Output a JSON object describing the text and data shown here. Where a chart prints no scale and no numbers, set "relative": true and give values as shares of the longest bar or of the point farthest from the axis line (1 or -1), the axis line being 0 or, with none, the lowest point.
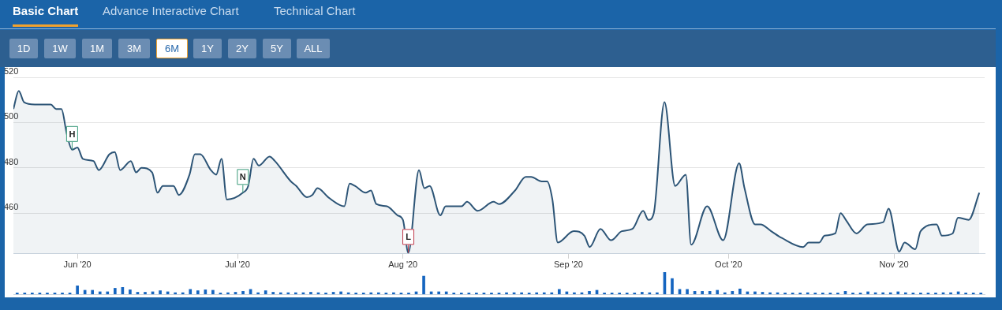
{
  "chart_data": [
    {
      "type": "area",
      "annotations": [
        "Basic Chart",
        "Advance Interactive Chart",
        "Technical Chart",
        "1D",
        "1W",
        "1M",
        "3M",
        "6M",
        "1Y",
        "2Y",
        "5Y",
        "ALL",
        {
          "text": "H",
          "x": "2020-05-31",
          "y": 488
        },
        {
          "text": "N",
          "x": "2020-07-02",
          "y": 469
        },
        {
          "text": "L",
          "x": "2020-08-02",
          "y": 442.5
        }
      ],
      "x": [
        "2020-05-20",
        "2020-05-21",
        "2020-05-22",
        "2020-05-24",
        "2020-05-25",
        "2020-05-27",
        "2020-05-28",
        "2020-05-29",
        "2020-05-30",
        "2020-05-31",
        "2020-06-01",
        "2020-06-02",
        "2020-06-04",
        "2020-06-05",
        "2020-06-07",
        "2020-06-08",
        "2020-06-09",
        "2020-06-11",
        "2020-06-12",
        "2020-06-13",
        "2020-06-15",
        "2020-06-16",
        "2020-06-17",
        "2020-06-19",
        "2020-06-20",
        "2020-06-22",
        "2020-06-23",
        "2020-06-24",
        "2020-06-26",
        "2020-06-27",
        "2020-06-28",
        "2020-06-29",
        "2020-07-02",
        "2020-07-03",
        "2020-07-04",
        "2020-07-05",
        "2020-07-07",
        "2020-07-08",
        "2020-07-11",
        "2020-07-12",
        "2020-07-14",
        "2020-07-15",
        "2020-07-16",
        "2020-07-18",
        "2020-07-21",
        "2020-07-22",
        "2020-07-23",
        "2020-07-25",
        "2020-07-26",
        "2020-07-27",
        "2020-07-29",
        "2020-07-31",
        "2020-08-01",
        "2020-08-02",
        "2020-08-04",
        "2020-08-05",
        "2020-08-06",
        "2020-08-08",
        "2020-08-09",
        "2020-08-11",
        "2020-08-12",
        "2020-08-13",
        "2020-08-15",
        "2020-08-18",
        "2020-08-19",
        "2020-08-22",
        "2020-08-24",
        "2020-08-25",
        "2020-08-27",
        "2020-08-28",
        "2020-08-29",
        "2020-08-30",
        "2020-09-02",
        "2020-09-04",
        "2020-09-05",
        "2020-09-07",
        "2020-09-09",
        "2020-09-11",
        "2020-09-13",
        "2020-09-15",
        "2020-09-16",
        "2020-09-17",
        "2020-09-19",
        "2020-09-21",
        "2020-09-23",
        "2020-09-24",
        "2020-09-27",
        "2020-09-30",
        "2020-10-03",
        "2020-10-04",
        "2020-10-06",
        "2020-10-07",
        "2020-10-09",
        "2020-10-11",
        "2020-10-15",
        "2020-10-16",
        "2020-10-18",
        "2020-10-19",
        "2020-10-21",
        "2020-10-22",
        "2020-10-23",
        "2020-10-25",
        "2020-10-27",
        "2020-10-30",
        "2020-10-31",
        "2020-11-02",
        "2020-11-03",
        "2020-11-05",
        "2020-11-06",
        "2020-11-09",
        "2020-11-10",
        "2020-11-12",
        "2020-11-13",
        "2020-11-15",
        "2020-11-17"
      ],
      "series": [
        {
          "color": "#2c5476",
          "values": [
            506,
            514,
            509,
            508,
            508,
            508,
            506,
            506,
            495,
            488,
            489,
            484,
            483,
            479,
            486,
            487,
            479,
            483,
            478,
            480,
            478,
            469,
            472,
            472,
            468,
            477,
            486,
            486,
            479,
            477,
            484,
            466,
            469,
            472,
            484,
            481,
            485,
            483,
            474,
            472,
            467,
            468,
            471,
            467,
            463,
            473,
            472,
            469,
            470,
            464,
            463,
            459,
            457,
            442.5,
            479,
            471,
            472,
            459,
            463,
            463,
            463,
            465,
            461,
            465,
            464,
            470,
            476,
            476,
            474,
            474,
            466,
            447,
            452,
            450,
            445,
            453,
            448,
            452,
            453,
            461,
            457,
            460,
            509,
            472,
            477,
            446,
            463,
            448,
            482,
            471,
            455,
            455,
            452,
            449,
            445,
            447,
            447,
            450,
            451,
            460,
            457,
            451,
            455,
            456,
            462,
            443,
            447,
            444,
            452,
            455,
            450,
            451,
            458,
            457,
            469
          ]
        }
      ],
      "xlim": [
        "2020-05-20",
        "2020-11-18"
      ],
      "xticks": [
        {
          "value": "2020-06-01",
          "label": "Jun '20"
        },
        {
          "value": "2020-07-01",
          "label": "Jul '20"
        },
        {
          "value": "2020-08-01",
          "label": "Aug '20"
        },
        {
          "value": "2020-09-01",
          "label": "Sep '20"
        },
        {
          "value": "2020-10-01",
          "label": "Oct '20"
        },
        {
          "value": "2020-11-01",
          "label": "Nov '20"
        }
      ],
      "ylim": [
        442,
        520
      ],
      "yticks": [
        460,
        480,
        500,
        520
      ],
      "grid": "y",
      "marker": "none"
    },
    {
      "type": "bar",
      "relative": true,
      "color": "#1565c0",
      "categories": [
        null,
        null,
        null,
        null,
        null,
        null,
        null,
        null,
        null,
        null,
        null,
        null,
        null,
        null,
        null,
        null,
        null,
        null,
        null,
        null,
        null,
        null,
        null,
        null,
        null,
        null,
        null,
        null,
        null,
        null,
        null,
        null,
        null,
        null,
        null,
        null,
        null,
        null,
        null,
        null,
        null,
        null,
        null,
        null,
        null,
        null,
        null,
        null,
        null,
        null,
        null,
        null,
        null,
        null,
        null,
        null,
        null,
        null,
        null,
        null,
        null,
        null,
        null,
        null,
        null,
        null,
        null,
        null,
        null,
        null,
        null,
        null,
        null,
        null,
        null,
        null,
        null,
        null,
        null,
        null,
        null,
        null,
        null,
        null,
        null,
        null,
        null,
        null,
        null,
        null,
        null,
        null,
        null,
        null,
        null,
        null,
        null,
        null,
        null,
        null,
        null,
        null,
        null,
        null,
        null,
        null,
        null,
        null,
        null,
        null,
        null,
        null,
        null,
        null,
        null,
        null,
        null,
        null,
        null,
        null,
        null,
        null,
        null,
        null,
        null,
        null,
        null,
        null,
        null
      ],
      "values": [
        0.06,
        0.06,
        0.06,
        0.06,
        0.06,
        0.06,
        0.06,
        0.06,
        0.38,
        0.18,
        0.18,
        0.11,
        0.11,
        0.27,
        0.31,
        0.2,
        0.09,
        0.09,
        0.11,
        0.16,
        0.11,
        0.07,
        0.07,
        0.22,
        0.16,
        0.2,
        0.18,
        0.06,
        0.07,
        0.09,
        0.13,
        0.22,
        0.07,
        0.16,
        0.09,
        0.07,
        0.07,
        0.07,
        0.07,
        0.09,
        0.07,
        0.06,
        0.09,
        0.11,
        0.07,
        0.06,
        0.06,
        0.07,
        0.07,
        0.06,
        0.07,
        0.06,
        0.06,
        0.11,
        0.82,
        0.11,
        0.11,
        0.11,
        0.06,
        0.06,
        0.06,
        0.06,
        0.06,
        0.06,
        0.06,
        0.07,
        0.07,
        0.07,
        0.06,
        0.07,
        0.07,
        0.07,
        0.22,
        0.11,
        0.07,
        0.07,
        0.13,
        0.18,
        0.06,
        0.06,
        0.06,
        0.06,
        0.06,
        0.09,
        0.07,
        0.07,
        1,
        0.71,
        0.22,
        0.22,
        0.13,
        0.13,
        0.13,
        0.18,
        0.07,
        0.13,
        0.24,
        0.11,
        0.11,
        0.09,
        0.07,
        0.07,
        0.06,
        0.06,
        0.06,
        0.07,
        0.06,
        0.06,
        0.06,
        0.06,
        0.13,
        0.06,
        0.06,
        0.11,
        0.07,
        0.07,
        0.07,
        0.11,
        0.07,
        0.06,
        0.06,
        0.06,
        0.06,
        0.07,
        0.07,
        0.11,
        0.06,
        0.06,
        0.06
      ]
    }
  ]
}
